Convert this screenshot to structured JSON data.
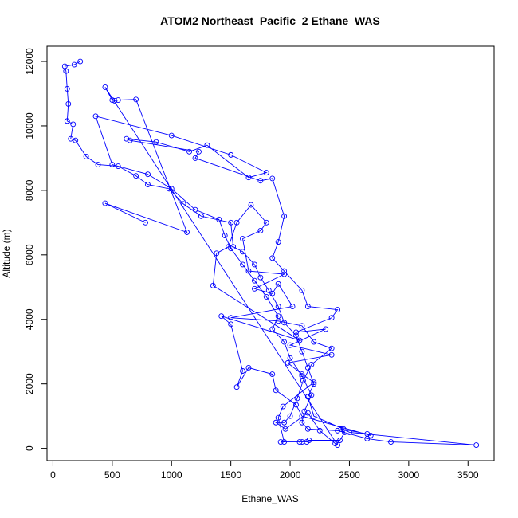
{
  "chart_data": {
    "type": "line",
    "marker": "circle",
    "color": "#0000ff",
    "title": "ATOM2 Northeast_Pacific_2 Ethane_WAS",
    "x_label": "Ethane_WAS",
    "y_label": "Altitude (m)",
    "xlim": [
      -50,
      3720
    ],
    "ylim": [
      -380,
      12470
    ],
    "xticks": [
      0,
      500,
      1000,
      1500,
      2000,
      2500,
      3000,
      3500
    ],
    "yticks": [
      0,
      2000,
      4000,
      6000,
      8000,
      10000,
      12000
    ],
    "grid": false,
    "x": [
      230,
      180,
      100,
      110,
      120,
      130,
      120,
      170,
      150,
      190,
      280,
      380,
      550,
      700,
      800,
      980,
      1100,
      1250,
      1500,
      1520,
      1600,
      1700,
      1750,
      1820,
      1900,
      1950,
      2050,
      2100,
      2150,
      2200,
      2150,
      2200,
      2450,
      2500,
      3570,
      2850,
      2650,
      2400,
      2150,
      2100,
      2120,
      2180,
      2100,
      2000,
      1950,
      1850,
      1900,
      1800,
      1700,
      1600,
      1500,
      1450,
      1400,
      1200,
      1000,
      800,
      500,
      360,
      1000,
      1500,
      1800,
      1650,
      1300,
      1150,
      870,
      620,
      650,
      1230,
      1200,
      1750,
      1850,
      1950,
      1900,
      1850,
      1950,
      2100,
      2150,
      2400,
      2350,
      2050,
      2300,
      2000,
      2350,
      1980,
      2100,
      2200,
      1940,
      1900,
      1950,
      1920,
      2080,
      2100,
      2140,
      2160,
      2420,
      2460,
      2430,
      2650,
      2680,
      2100,
      2050,
      1880,
      1850,
      1650,
      1550,
      1600,
      1500,
      1420,
      2080,
      1350,
      1380,
      1480,
      1550,
      1670,
      1800,
      1750,
      1600,
      1650,
      1950,
      1700,
      1850,
      1900,
      2020,
      1500,
      1900,
      2100,
      2200,
      2350,
      2180,
      2110,
      2060,
      2000,
      1950,
      1880,
      1960,
      2150,
      2250,
      2380,
      2400,
      440,
      500,
      520,
      550,
      700,
      1130,
      440,
      780
    ],
    "values": [
      12000,
      11900,
      11850,
      11700,
      11150,
      10680,
      10150,
      10050,
      9600,
      9550,
      9050,
      8800,
      8750,
      8450,
      8180,
      8050,
      7580,
      7200,
      7000,
      6250,
      6100,
      5700,
      5300,
      4900,
      4400,
      3900,
      3500,
      3000,
      2500,
      2000,
      1600,
      1000,
      600,
      500,
      100,
      200,
      300,
      550,
      600,
      800,
      1150,
      1650,
      2250,
      2800,
      3300,
      3700,
      4100,
      4700,
      5200,
      5700,
      6200,
      6600,
      7100,
      7400,
      8050,
      8500,
      8800,
      10300,
      9700,
      9100,
      8550,
      8400,
      9400,
      9200,
      9500,
      9600,
      9550,
      9200,
      9000,
      8300,
      8370,
      7200,
      6400,
      5900,
      5500,
      4900,
      4400,
      4300,
      4050,
      3600,
      3700,
      3200,
      2900,
      2650,
      2300,
      2050,
      1300,
      950,
      200,
      200,
      200,
      200,
      200,
      250,
      250,
      500,
      600,
      450,
      400,
      1000,
      1350,
      1800,
      2300,
      2500,
      1900,
      2400,
      3850,
      4100,
      3350,
      5050,
      6050,
      6250,
      7000,
      7550,
      7000,
      6750,
      6500,
      5500,
      5400,
      4950,
      4800,
      5100,
      4400,
      4050,
      3950,
      3800,
      3300,
      3100,
      2600,
      2100,
      1550,
      1000,
      800,
      800,
      600,
      1100,
      550,
      150,
      100,
      11200,
      10800,
      10780,
      10800,
      10820,
      6700,
      7600,
      7000
    ]
  }
}
